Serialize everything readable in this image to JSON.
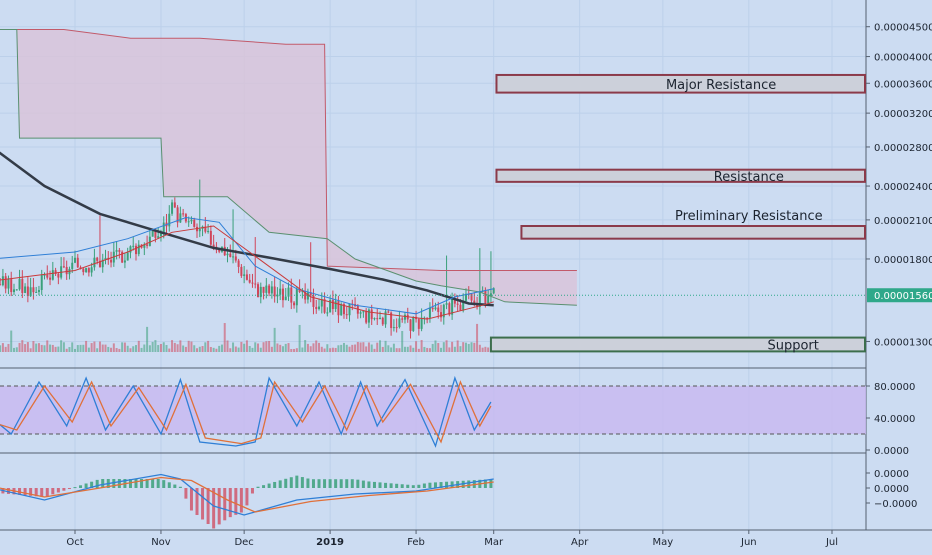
{
  "chart_data": [
    {
      "type": "line",
      "panel": "price",
      "instrument": "candlestick price with Ichimoku cloud and moving average",
      "y_scale": "log",
      "ylim": [
        1.18e-05,
        5e-05
      ],
      "y_ticks": [
        4.5e-05,
        4e-05,
        3.6e-05,
        3.2e-05,
        2.8e-05,
        2.4e-05,
        2.1e-05,
        1.8e-05,
        1.3e-05
      ],
      "y_tick_labels": [
        "0.00004500",
        "0.00004000",
        "0.00003600",
        "0.00003200",
        "0.00002800",
        "0.00002400",
        "0.00002100",
        "0.00001800",
        "0.00001300"
      ],
      "last_price": 1.56e-05,
      "last_price_label": "0.00001560",
      "zones": [
        {
          "label": "Major Resistance",
          "low": 3.47e-05,
          "high": 3.72e-05,
          "color": "#8b3a4a",
          "fill": "#ccd0da",
          "from": "2019-03-02",
          "to": "2019-07-26",
          "label_at": "2019-05-22"
        },
        {
          "label": "Resistance",
          "low": 2.44e-05,
          "high": 2.56e-05,
          "color": "#8b3a4a",
          "fill": "#ccd0da",
          "from": "2019-03-02",
          "to": "2019-07-26",
          "label_at": "2019-06-01"
        },
        {
          "label": "Preliminary Resistance",
          "low": 1.95e-05,
          "high": 2.05e-05,
          "color": "#8b3a4a",
          "fill": "#ccd0da",
          "from": "2019-03-11",
          "to": "2019-07-26",
          "label_at": "2019-06-01",
          "label_above": true
        },
        {
          "label": "Support",
          "low": 1.25e-05,
          "high": 1.32e-05,
          "color": "#3c6e4c",
          "fill": "#ccd0da",
          "from": "2019-02-28",
          "to": "2019-07-25",
          "label_at": "2019-06-17"
        }
      ],
      "series": [
        {
          "role": "cloud-upper",
          "color": "#c25a6a",
          "points": [
            [
              "2018-09-01",
              4.45e-05
            ],
            [
              "2018-09-19",
              4.45e-05
            ],
            [
              "2018-09-27",
              4.45e-05
            ],
            [
              "2018-10-21",
              4.3e-05
            ],
            [
              "2018-11-15",
              4.3e-05
            ],
            [
              "2018-12-16",
              4.2e-05
            ],
            [
              "2018-12-30",
              4.2e-05
            ],
            [
              "2018-12-31",
              1.75e-05
            ],
            [
              "2019-02-10",
              1.72e-05
            ],
            [
              "2019-03-31",
              1.72e-05
            ]
          ]
        },
        {
          "role": "cloud-lower",
          "color": "#5a9070",
          "points": [
            [
              "2018-09-01",
              4.45e-05
            ],
            [
              "2018-09-10",
              4.45e-05
            ],
            [
              "2018-09-11",
              2.9e-05
            ],
            [
              "2018-09-27",
              2.9e-05
            ],
            [
              "2018-11-01",
              2.9e-05
            ],
            [
              "2018-11-02",
              2.3e-05
            ],
            [
              "2018-11-25",
              2.3e-05
            ],
            [
              "2018-12-10",
              2e-05
            ],
            [
              "2018-12-31",
              1.95e-05
            ],
            [
              "2019-01-10",
              1.8e-05
            ],
            [
              "2019-02-01",
              1.65e-05
            ],
            [
              "2019-02-10",
              1.62e-05
            ],
            [
              "2019-02-24",
              1.58e-05
            ],
            [
              "2019-03-05",
              1.52e-05
            ],
            [
              "2019-03-31",
              1.5e-05
            ]
          ]
        },
        {
          "role": "moving-average",
          "color": "#333b47",
          "points": [
            [
              "2018-09-01",
              2.8e-05
            ],
            [
              "2018-09-20",
              2.4e-05
            ],
            [
              "2018-10-10",
              2.15e-05
            ],
            [
              "2018-11-01",
              2e-05
            ],
            [
              "2018-11-20",
              1.88e-05
            ],
            [
              "2018-12-10",
              1.81e-05
            ],
            [
              "2019-01-01",
              1.73e-05
            ],
            [
              "2019-01-20",
              1.66e-05
            ],
            [
              "2019-02-05",
              1.59e-05
            ],
            [
              "2019-02-20",
              1.51e-05
            ],
            [
              "2019-03-01",
              1.5e-05
            ]
          ]
        },
        {
          "role": "conversion-line",
          "color": "#2f7fd6",
          "points": [
            [
              "2018-09-01",
              1.8e-05
            ],
            [
              "2018-10-01",
              1.85e-05
            ],
            [
              "2018-10-20",
              1.95e-05
            ],
            [
              "2018-11-10",
              2.12e-05
            ],
            [
              "2018-11-22",
              2.08e-05
            ],
            [
              "2018-12-05",
              1.75e-05
            ],
            [
              "2018-12-20",
              1.6e-05
            ],
            [
              "2019-01-10",
              1.5e-05
            ],
            [
              "2019-02-01",
              1.45e-05
            ],
            [
              "2019-02-15",
              1.55e-05
            ],
            [
              "2019-03-01",
              1.6e-05
            ]
          ]
        },
        {
          "role": "base-line",
          "color": "#c93a3a",
          "points": [
            [
              "2018-09-01",
              1.65e-05
            ],
            [
              "2018-10-01",
              1.72e-05
            ],
            [
              "2018-10-20",
              1.85e-05
            ],
            [
              "2018-11-05",
              2e-05
            ],
            [
              "2018-11-20",
              2.05e-05
            ],
            [
              "2018-12-05",
              1.82e-05
            ],
            [
              "2018-12-25",
              1.55e-05
            ],
            [
              "2019-01-15",
              1.46e-05
            ],
            [
              "2019-02-05",
              1.42e-05
            ],
            [
              "2019-02-25",
              1.5e-05
            ],
            [
              "2019-03-01",
              1.52e-05
            ]
          ]
        },
        {
          "role": "close",
          "color": "#2e9e6e",
          "points": [
            [
              "2018-09-01",
              1.65e-05
            ],
            [
              "2018-09-15",
              1.6e-05
            ],
            [
              "2018-10-01",
              1.75e-05
            ],
            [
              "2018-10-15",
              1.8e-05
            ],
            [
              "2018-11-01",
              2e-05
            ],
            [
              "2018-11-05",
              2.18e-05
            ],
            [
              "2018-11-12",
              2.05e-05
            ],
            [
              "2018-11-25",
              1.85e-05
            ],
            [
              "2018-12-05",
              1.6e-05
            ],
            [
              "2018-12-20",
              1.55e-05
            ],
            [
              "2019-01-05",
              1.48e-05
            ],
            [
              "2019-01-20",
              1.42e-05
            ],
            [
              "2019-02-01",
              1.4e-05
            ],
            [
              "2019-02-10",
              1.48e-05
            ],
            [
              "2019-02-20",
              1.52e-05
            ],
            [
              "2019-03-01",
              1.56e-05
            ]
          ]
        }
      ]
    },
    {
      "type": "line",
      "panel": "stochastic",
      "ylim": [
        0,
        100
      ],
      "y_ticks": [
        80,
        40,
        0
      ],
      "y_tick_labels": [
        "80.0000",
        "40.0000",
        "0.0000"
      ],
      "band": [
        20,
        80
      ],
      "series": [
        {
          "role": "%K",
          "color": "#2f7fd6",
          "points": [
            [
              "2018-09-01",
              40
            ],
            [
              "2018-09-08",
              20
            ],
            [
              "2018-09-18",
              85
            ],
            [
              "2018-09-28",
              30
            ],
            [
              "2018-10-05",
              90
            ],
            [
              "2018-10-12",
              25
            ],
            [
              "2018-10-22",
              80
            ],
            [
              "2018-11-01",
              20
            ],
            [
              "2018-11-08",
              88
            ],
            [
              "2018-11-15",
              10
            ],
            [
              "2018-11-28",
              5
            ],
            [
              "2018-12-05",
              10
            ],
            [
              "2018-12-10",
              90
            ],
            [
              "2018-12-20",
              30
            ],
            [
              "2018-12-28",
              85
            ],
            [
              "2019-01-05",
              20
            ],
            [
              "2019-01-12",
              85
            ],
            [
              "2019-01-18",
              30
            ],
            [
              "2019-01-28",
              88
            ],
            [
              "2019-02-08",
              5
            ],
            [
              "2019-02-15",
              90
            ],
            [
              "2019-02-22",
              25
            ],
            [
              "2019-02-28",
              60
            ]
          ]
        },
        {
          "role": "%D",
          "color": "#e0703a",
          "points": [
            [
              "2018-09-01",
              35
            ],
            [
              "2018-09-10",
              25
            ],
            [
              "2018-09-20",
              80
            ],
            [
              "2018-09-30",
              35
            ],
            [
              "2018-10-07",
              85
            ],
            [
              "2018-10-14",
              30
            ],
            [
              "2018-10-24",
              78
            ],
            [
              "2018-11-03",
              25
            ],
            [
              "2018-11-10",
              82
            ],
            [
              "2018-11-17",
              15
            ],
            [
              "2018-11-30",
              8
            ],
            [
              "2018-12-07",
              15
            ],
            [
              "2018-12-12",
              85
            ],
            [
              "2018-12-22",
              35
            ],
            [
              "2018-12-30",
              80
            ],
            [
              "2019-01-07",
              25
            ],
            [
              "2019-01-14",
              80
            ],
            [
              "2019-01-20",
              35
            ],
            [
              "2019-01-30",
              82
            ],
            [
              "2019-02-10",
              10
            ],
            [
              "2019-02-17",
              85
            ],
            [
              "2019-02-24",
              30
            ],
            [
              "2019-02-28",
              55
            ]
          ]
        }
      ]
    },
    {
      "type": "bar",
      "panel": "macd",
      "ylim": [
        -2.8e-06,
        2.2e-06
      ],
      "y_ticks": [
        1e-06,
        0.0,
        -1e-06
      ],
      "y_tick_labels": [
        "0.0000",
        "0.0000",
        "−0.0000"
      ],
      "series": [
        {
          "role": "macd-line",
          "color": "#2f7fd6",
          "points": [
            [
              "2018-09-01",
              0.0
            ],
            [
              "2018-09-20",
              -8e-07
            ],
            [
              "2018-10-10",
              2e-07
            ],
            [
              "2018-11-01",
              9e-07
            ],
            [
              "2018-11-08",
              6e-07
            ],
            [
              "2018-11-20",
              -1.2e-06
            ],
            [
              "2018-12-01",
              -1.8e-06
            ],
            [
              "2018-12-20",
              -8e-07
            ],
            [
              "2019-01-10",
              -4e-07
            ],
            [
              "2019-02-01",
              -2e-07
            ],
            [
              "2019-03-01",
              6e-07
            ]
          ]
        },
        {
          "role": "signal-line",
          "color": "#e0703a",
          "points": [
            [
              "2018-09-01",
              1e-07
            ],
            [
              "2018-09-20",
              -6e-07
            ],
            [
              "2018-10-10",
              0.0
            ],
            [
              "2018-11-01",
              7e-07
            ],
            [
              "2018-11-12",
              5e-07
            ],
            [
              "2018-11-25",
              -8e-07
            ],
            [
              "2018-12-05",
              -1.6e-06
            ],
            [
              "2018-12-25",
              -9e-07
            ],
            [
              "2019-01-15",
              -5e-07
            ],
            [
              "2019-02-05",
              -2e-07
            ],
            [
              "2019-03-01",
              4e-07
            ]
          ]
        }
      ]
    }
  ],
  "x_axis": {
    "ticks": [
      {
        "label": "Oct",
        "date": "2018-10-01"
      },
      {
        "label": "Nov",
        "date": "2018-11-01"
      },
      {
        "label": "Dec",
        "date": "2018-12-01"
      },
      {
        "label": "2019",
        "date": "2019-01-01",
        "bold": true
      },
      {
        "label": "Feb",
        "date": "2019-02-01"
      },
      {
        "label": "Mar",
        "date": "2019-03-01"
      },
      {
        "label": "Apr",
        "date": "2019-04-01"
      },
      {
        "label": "May",
        "date": "2019-05-01"
      },
      {
        "label": "Jun",
        "date": "2019-06-01"
      },
      {
        "label": "Jul",
        "date": "2019-07-01"
      }
    ]
  },
  "colors": {
    "background": "#ccdcf2",
    "panel_divider": "#556070",
    "grid": "#bcd0ea",
    "cloud_fill": "#d9c3d8",
    "stoch_band": "#c8b8f0",
    "up": "#3aa07a",
    "down": "#d0455a",
    "last_price_badge": "#2fa88a"
  }
}
